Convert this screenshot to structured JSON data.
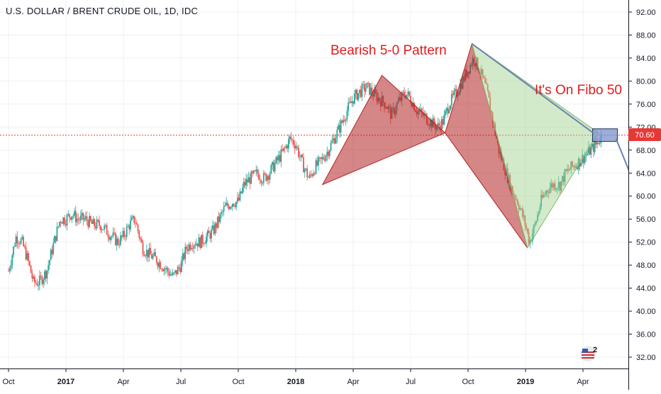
{
  "title": "U.S. DOLLAR / BRENT CRUDE OIL, 1D, IDC",
  "colors": {
    "up": "#26a69a",
    "down": "#ef5350",
    "pattern_red": "#b22222",
    "pattern_green": "#9ed08a",
    "arrow": "#6a84b0",
    "price_line": "#e53935",
    "annotation": "#e31b1b"
  },
  "annotations": {
    "pattern_label": "Bearish 5-0 Pattern",
    "fibo_label": "It's On Fibo 50"
  },
  "price_badge": "70.60",
  "notification_count": "2",
  "chart_data": {
    "type": "candlestick",
    "title": "U.S. DOLLAR / BRENT CRUDE OIL, 1D, IDC",
    "ylim": [
      30,
      94
    ],
    "y_ticks": [
      "92.00",
      "88.00",
      "84.00",
      "80.00",
      "76.00",
      "72.00",
      "68.00",
      "64.00",
      "60.00",
      "56.00",
      "52.00",
      "48.00",
      "44.00",
      "40.00",
      "36.00",
      "32.00"
    ],
    "y_tick_values": [
      92,
      88,
      84,
      80,
      76,
      72,
      68,
      64,
      60,
      56,
      52,
      48,
      44,
      40,
      36,
      32
    ],
    "x_ticks": [
      {
        "label": "Oct",
        "bold": false
      },
      {
        "label": "2017",
        "bold": true
      },
      {
        "label": "Apr",
        "bold": false
      },
      {
        "label": "Jul",
        "bold": false
      },
      {
        "label": "Oct",
        "bold": false
      },
      {
        "label": "2018",
        "bold": true
      },
      {
        "label": "Apr",
        "bold": false
      },
      {
        "label": "Jul",
        "bold": false
      },
      {
        "label": "Oct",
        "bold": false
      },
      {
        "label": "2019",
        "bold": true
      },
      {
        "label": "Apr",
        "bold": false
      }
    ],
    "x_tick_month_index": [
      0,
      3,
      6,
      9,
      12,
      15,
      18,
      21,
      24,
      27,
      30
    ],
    "x_range_months": [
      -0.1,
      33.8
    ],
    "last_price": 70.6,
    "close_path": [
      [
        0.0,
        47
      ],
      [
        0.4,
        53
      ],
      [
        0.7,
        52
      ],
      [
        1.0,
        49
      ],
      [
        1.3,
        45
      ],
      [
        1.6,
        45
      ],
      [
        2.0,
        47
      ],
      [
        2.3,
        51
      ],
      [
        2.7,
        56
      ],
      [
        3.0,
        56
      ],
      [
        3.3,
        57
      ],
      [
        3.6,
        56
      ],
      [
        4.0,
        56
      ],
      [
        4.4,
        55
      ],
      [
        4.8,
        55
      ],
      [
        5.1,
        54
      ],
      [
        5.4,
        53
      ],
      [
        5.7,
        52
      ],
      [
        6.0,
        53
      ],
      [
        6.3,
        55
      ],
      [
        6.6,
        56
      ],
      [
        7.0,
        51
      ],
      [
        7.3,
        50
      ],
      [
        7.7,
        49
      ],
      [
        8.0,
        48
      ],
      [
        8.3,
        47
      ],
      [
        8.6,
        46
      ],
      [
        9.0,
        48
      ],
      [
        9.3,
        51
      ],
      [
        9.6,
        52
      ],
      [
        10.0,
        52
      ],
      [
        10.4,
        53
      ],
      [
        10.7,
        54
      ],
      [
        11.0,
        56
      ],
      [
        11.3,
        58
      ],
      [
        11.7,
        59
      ],
      [
        12.0,
        59
      ],
      [
        12.3,
        62
      ],
      [
        12.6,
        63
      ],
      [
        13.0,
        64
      ],
      [
        13.3,
        63
      ],
      [
        13.6,
        64
      ],
      [
        14.0,
        66
      ],
      [
        14.4,
        68
      ],
      [
        14.7,
        70
      ],
      [
        15.0,
        69
      ],
      [
        15.3,
        66
      ],
      [
        15.7,
        63
      ],
      [
        16.0,
        65
      ],
      [
        16.3,
        66
      ],
      [
        16.7,
        68
      ],
      [
        17.0,
        70
      ],
      [
        17.3,
        72
      ],
      [
        17.7,
        75
      ],
      [
        18.0,
        77
      ],
      [
        18.3,
        78
      ],
      [
        18.7,
        79
      ],
      [
        19.0,
        78
      ],
      [
        19.3,
        77
      ],
      [
        19.7,
        76
      ],
      [
        20.0,
        74
      ],
      [
        20.3,
        76
      ],
      [
        20.7,
        78
      ],
      [
        21.0,
        77
      ],
      [
        21.3,
        75
      ],
      [
        21.7,
        74
      ],
      [
        22.0,
        73
      ],
      [
        22.4,
        72
      ],
      [
        22.7,
        73
      ],
      [
        23.0,
        76
      ],
      [
        23.4,
        78
      ],
      [
        23.7,
        80
      ],
      [
        24.0,
        82
      ],
      [
        24.3,
        84
      ],
      [
        24.6,
        82
      ],
      [
        25.0,
        78
      ],
      [
        25.3,
        73
      ],
      [
        25.6,
        68
      ],
      [
        26.0,
        64
      ],
      [
        26.3,
        61
      ],
      [
        26.6,
        59
      ],
      [
        27.0,
        55
      ],
      [
        27.2,
        52
      ],
      [
        27.5,
        55
      ],
      [
        27.8,
        59
      ],
      [
        28.1,
        61
      ],
      [
        28.4,
        62
      ],
      [
        28.8,
        62
      ],
      [
        29.1,
        64
      ],
      [
        29.4,
        65
      ],
      [
        29.8,
        66
      ],
      [
        30.1,
        67
      ],
      [
        30.4,
        68
      ],
      [
        30.7,
        69
      ],
      [
        31.0,
        70.6
      ]
    ],
    "pattern_points": {
      "X": [
        16.4,
        62
      ],
      "A": [
        19.5,
        81
      ],
      "B": [
        22.8,
        71
      ],
      "C": [
        24.2,
        86.5
      ],
      "D": [
        27.1,
        51
      ],
      "E": [
        30.8,
        71
      ]
    },
    "target_box": {
      "x0": 30.5,
      "x1": 31.8,
      "y0": 69.5,
      "y1": 71.7
    },
    "arrow_end": [
      33.0,
      59.5
    ]
  }
}
